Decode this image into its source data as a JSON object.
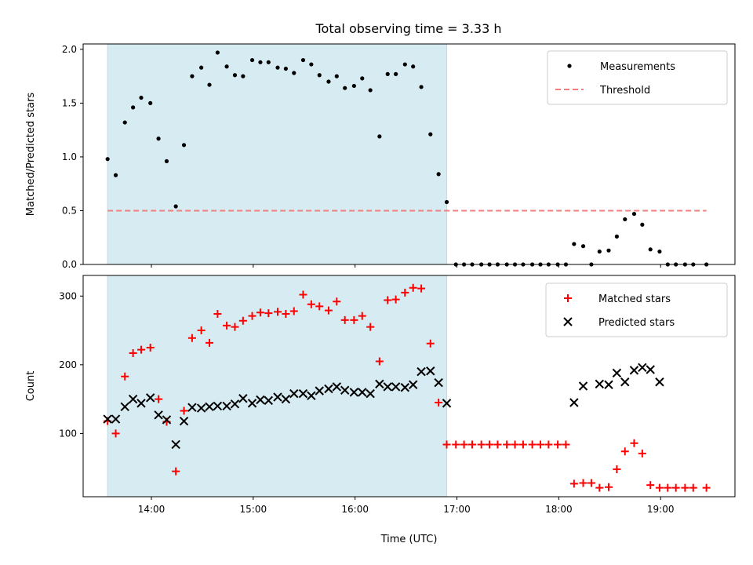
{
  "title": "Total observing time = 3.33 h",
  "chart_data": [
    {
      "type": "scatter",
      "ylabel": "Matched/Predicted stars",
      "xlabel": "",
      "xlim": [
        13.33,
        19.73
      ],
      "ylim": [
        0,
        2.05
      ],
      "yticks": [
        0.0,
        0.5,
        1.0,
        1.5,
        2.0
      ],
      "ytick_labels": [
        "0.0",
        "0.5",
        "1.0",
        "1.5",
        "2.0"
      ],
      "shaded_region": {
        "x": [
          13.57,
          16.9
        ],
        "color": "#add8e6"
      },
      "legend_position": "top-right",
      "series": [
        {
          "name": "Measurements",
          "marker": "dot",
          "color": "#000000",
          "x": [
            13.57,
            13.65,
            13.74,
            13.82,
            13.9,
            13.99,
            14.07,
            14.15,
            14.24,
            14.32,
            14.4,
            14.49,
            14.57,
            14.65,
            14.74,
            14.82,
            14.9,
            14.99,
            15.07,
            15.15,
            15.24,
            15.32,
            15.4,
            15.49,
            15.57,
            15.65,
            15.74,
            15.82,
            15.9,
            15.99,
            16.07,
            16.15,
            16.24,
            16.32,
            16.4,
            16.49,
            16.57,
            16.65,
            16.74,
            16.82,
            16.9,
            16.99,
            17.07,
            17.15,
            17.24,
            17.32,
            17.4,
            17.49,
            17.57,
            17.65,
            17.74,
            17.82,
            17.9,
            17.99,
            18.07,
            18.15,
            18.24,
            18.32,
            18.4,
            18.49,
            18.57,
            18.65,
            18.74,
            18.82,
            18.9,
            18.99,
            19.07,
            19.15,
            19.24,
            19.32,
            19.45
          ],
          "y": [
            0.98,
            0.83,
            1.32,
            1.46,
            1.55,
            1.5,
            1.17,
            0.96,
            0.54,
            1.11,
            1.75,
            1.83,
            1.67,
            1.97,
            1.84,
            1.76,
            1.75,
            1.9,
            1.88,
            1.88,
            1.83,
            1.82,
            1.78,
            1.9,
            1.86,
            1.76,
            1.7,
            1.75,
            1.64,
            1.66,
            1.73,
            1.62,
            1.19,
            1.77,
            1.77,
            1.86,
            1.84,
            1.65,
            1.21,
            0.84,
            0.58,
            0.0,
            0.0,
            0.0,
            0.0,
            0.0,
            0.0,
            0.0,
            0.0,
            0.0,
            0.0,
            0.0,
            0.0,
            0.0,
            0.0,
            0.19,
            0.17,
            0.0,
            0.12,
            0.13,
            0.26,
            0.42,
            0.47,
            0.37,
            0.14,
            0.12,
            0.0,
            0.0,
            0.0,
            0.0,
            0.0
          ]
        },
        {
          "name": "Threshold",
          "line": "dashed",
          "color": "#f08080",
          "x": [
            13.57,
            19.45
          ],
          "y": [
            0.5,
            0.5
          ]
        }
      ]
    },
    {
      "type": "scatter",
      "ylabel": "Count",
      "xlabel": "Time (UTC)",
      "xlim": [
        13.33,
        19.73
      ],
      "ylim": [
        8,
        330
      ],
      "yticks": [
        100,
        200,
        300
      ],
      "ytick_labels": [
        "100",
        "200",
        "300"
      ],
      "xticks": [
        14,
        15,
        16,
        17,
        18,
        19
      ],
      "xtick_labels": [
        "14:00",
        "15:00",
        "16:00",
        "17:00",
        "18:00",
        "19:00"
      ],
      "shaded_region": {
        "x": [
          13.57,
          16.9
        ],
        "color": "#add8e6"
      },
      "legend_position": "top-right",
      "series": [
        {
          "name": "Matched stars",
          "marker": "plus",
          "color": "#ff0000",
          "x": [
            13.57,
            13.65,
            13.74,
            13.82,
            13.9,
            13.99,
            14.07,
            14.15,
            14.24,
            14.32,
            14.4,
            14.49,
            14.57,
            14.65,
            14.74,
            14.82,
            14.9,
            14.99,
            15.07,
            15.15,
            15.24,
            15.32,
            15.4,
            15.49,
            15.57,
            15.65,
            15.74,
            15.82,
            15.9,
            15.99,
            16.07,
            16.15,
            16.24,
            16.32,
            16.4,
            16.49,
            16.57,
            16.65,
            16.74,
            16.82,
            16.9,
            16.99,
            17.07,
            17.15,
            17.24,
            17.32,
            17.4,
            17.49,
            17.57,
            17.65,
            17.74,
            17.82,
            17.9,
            17.99,
            18.07,
            18.15,
            18.24,
            18.32,
            18.4,
            18.49,
            18.57,
            18.65,
            18.74,
            18.82,
            18.9,
            18.99,
            19.07,
            19.15,
            19.24,
            19.32,
            19.45
          ],
          "y": [
            118,
            100,
            183,
            217,
            222,
            225,
            150,
            117,
            45,
            133,
            239,
            250,
            232,
            274,
            257,
            255,
            264,
            271,
            276,
            275,
            277,
            274,
            278,
            302,
            288,
            285,
            279,
            292,
            265,
            265,
            271,
            255,
            205,
            294,
            295,
            305,
            312,
            311,
            231,
            145,
            84,
            84,
            84,
            84,
            84,
            84,
            84,
            84,
            84,
            84,
            84,
            84,
            84,
            84,
            84,
            27,
            28,
            28,
            21,
            22,
            48,
            74,
            86,
            71,
            25,
            21,
            21,
            21,
            21,
            21,
            21
          ]
        },
        {
          "name": "Predicted stars",
          "marker": "x",
          "color": "#000000",
          "x": [
            13.57,
            13.65,
            13.74,
            13.82,
            13.9,
            13.99,
            14.07,
            14.15,
            14.24,
            14.32,
            14.4,
            14.49,
            14.57,
            14.65,
            14.74,
            14.82,
            14.9,
            14.99,
            15.07,
            15.15,
            15.24,
            15.32,
            15.4,
            15.49,
            15.57,
            15.65,
            15.74,
            15.82,
            15.9,
            15.99,
            16.07,
            16.15,
            16.24,
            16.32,
            16.4,
            16.49,
            16.57,
            16.65,
            16.74,
            16.82,
            16.9,
            18.15,
            18.24,
            18.4,
            18.49,
            18.57,
            18.65,
            18.74,
            18.82,
            18.9,
            18.99
          ],
          "y": [
            121,
            121,
            139,
            150,
            144,
            152,
            127,
            120,
            84,
            118,
            138,
            137,
            139,
            140,
            140,
            143,
            151,
            144,
            149,
            148,
            153,
            150,
            158,
            158,
            155,
            162,
            165,
            168,
            163,
            160,
            160,
            158,
            172,
            168,
            168,
            167,
            171,
            190,
            191,
            174,
            144,
            145,
            169,
            172,
            171,
            188,
            175,
            192,
            196,
            193,
            175
          ]
        }
      ]
    }
  ]
}
